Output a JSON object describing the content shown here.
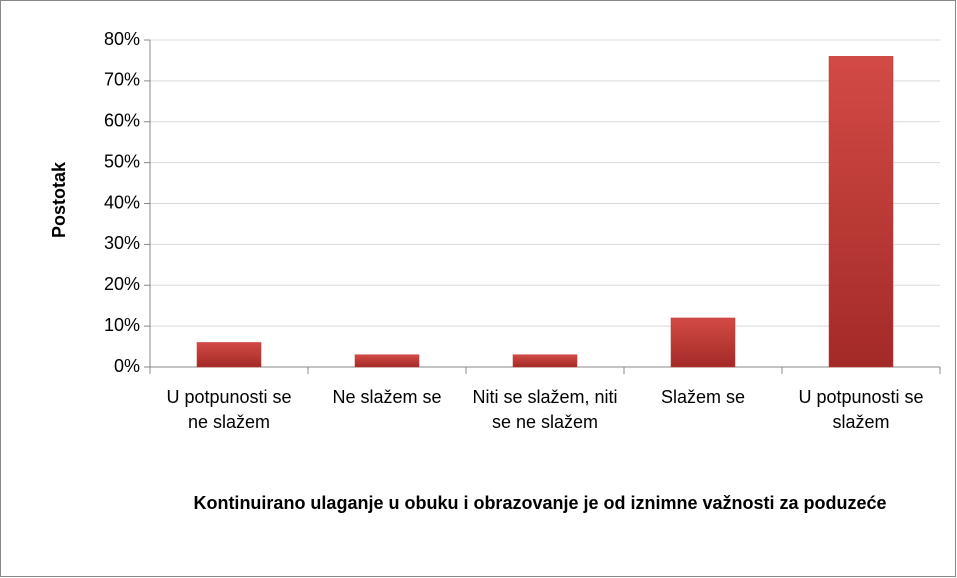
{
  "chart_data": {
    "type": "bar",
    "categories": [
      "U potpunosti se ne slažem",
      "Ne slažem se",
      "Niti se slažem, niti se ne slažem",
      "Slažem se",
      "U potpunosti se slažem"
    ],
    "values": [
      6,
      3,
      3,
      12,
      76
    ],
    "color": "#c0392f",
    "ylabel": "Postotak",
    "xlabel": "Kontinuirano ulaganje u obuku i obrazovanje je od iznimne važnosti za poduzeće",
    "ylim": [
      0,
      80
    ],
    "yticks": [
      {
        "value": 0,
        "label": "0%"
      },
      {
        "value": 10,
        "label": "10%"
      },
      {
        "value": 20,
        "label": "20%"
      },
      {
        "value": 30,
        "label": "30%"
      },
      {
        "value": 40,
        "label": "40%"
      },
      {
        "value": 50,
        "label": "50%"
      },
      {
        "value": 60,
        "label": "60%"
      },
      {
        "value": 70,
        "label": "70%"
      },
      {
        "value": 80,
        "label": "80%"
      }
    ],
    "grid": true
  }
}
